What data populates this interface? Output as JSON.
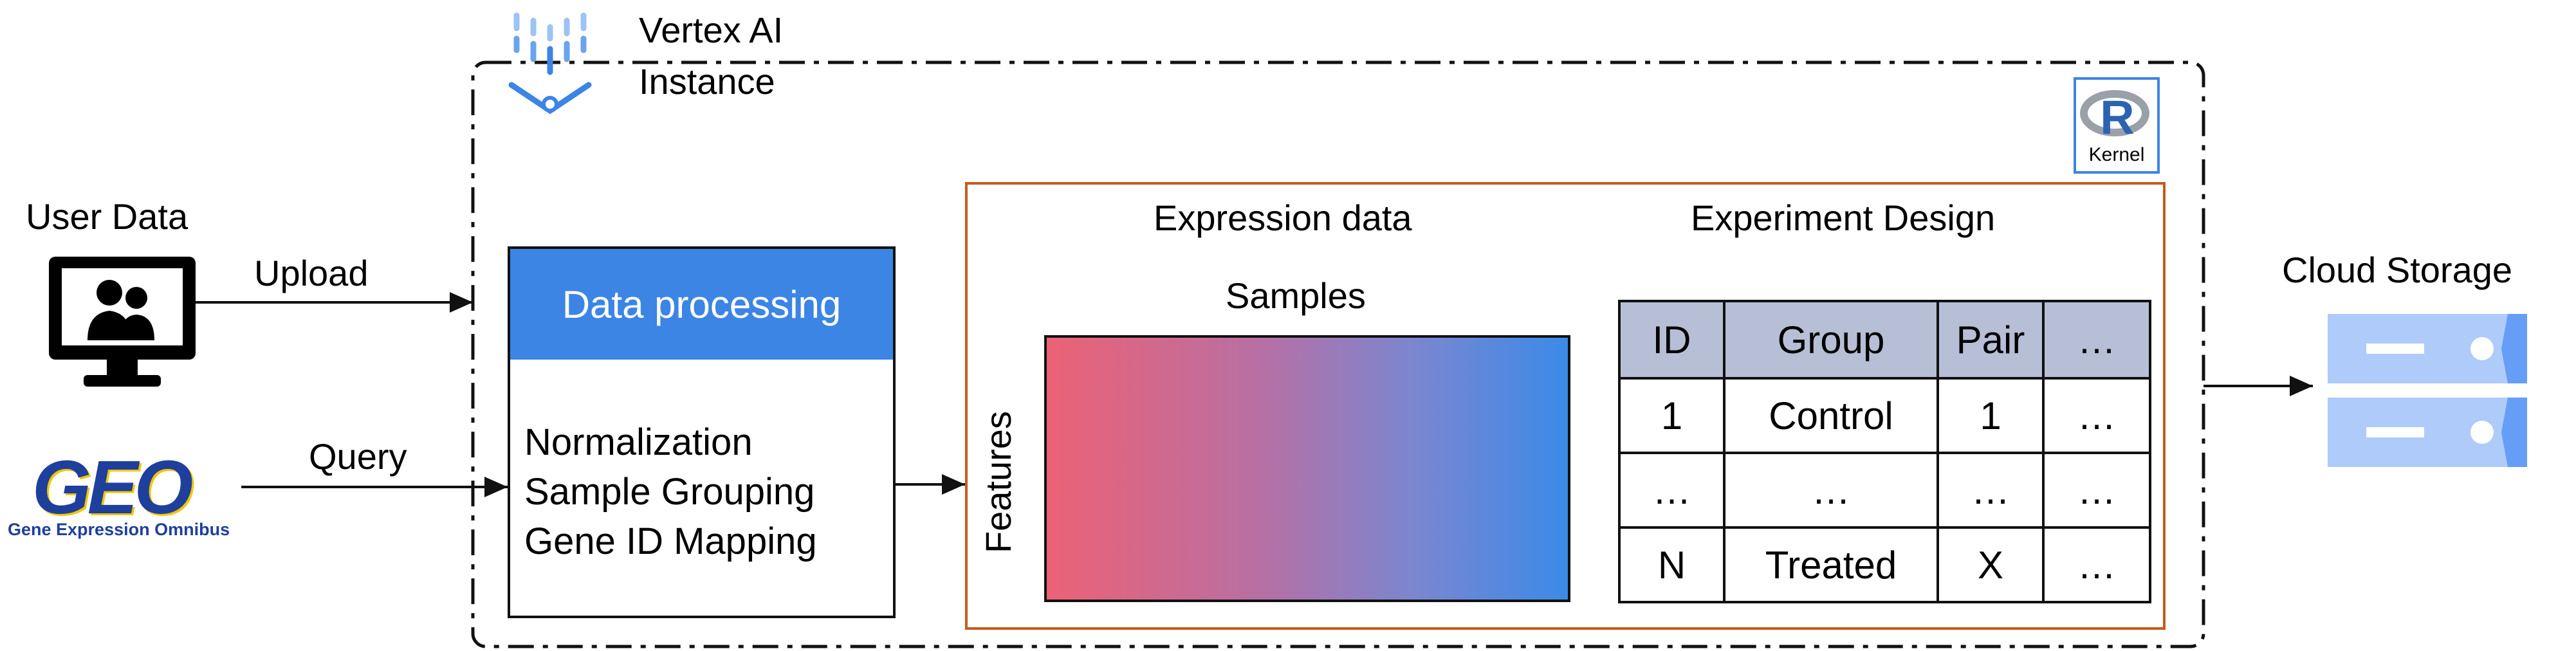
{
  "instance": {
    "title_line1": "Vertex AI",
    "title_line2": "Instance"
  },
  "kernel": {
    "label": "Kernel",
    "logo_letter": "R"
  },
  "inputs": {
    "user_data_label": "User Data",
    "upload_label": "Upload",
    "query_label": "Query",
    "geo_logo_text": "GEO",
    "geo_subtitle": "Gene Expression Omnibus"
  },
  "processing": {
    "header": "Data processing",
    "steps": [
      "Normalization",
      "Sample Grouping",
      "Gene ID Mapping"
    ]
  },
  "expression": {
    "title": "Expression data",
    "columns_label": "Samples",
    "rows_label": "Features"
  },
  "design": {
    "title": "Experiment Design",
    "headers": [
      "ID",
      "Group",
      "Pair",
      "…"
    ],
    "rows": [
      [
        "1",
        "Control",
        "1",
        "…"
      ],
      [
        "…",
        "…",
        "…",
        "…"
      ],
      [
        "N",
        "Treated",
        "X",
        "…"
      ]
    ]
  },
  "storage": {
    "label": "Cloud Storage"
  },
  "colors": {
    "accent_blue": "#3c85e4",
    "output_border": "#c45c1c",
    "table_header": "#b7bfd6",
    "heatmap_start": "#ec6275",
    "heatmap_end": "#3b8ae8"
  }
}
